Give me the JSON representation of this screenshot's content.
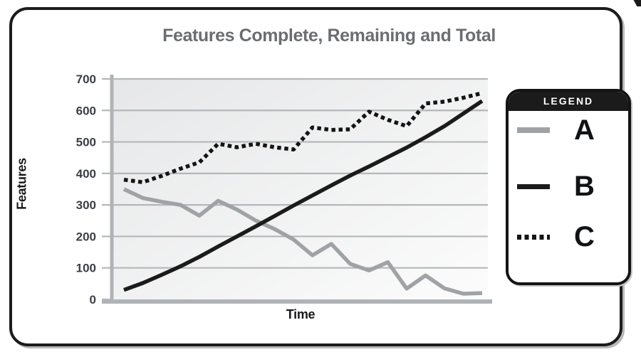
{
  "chart": {
    "title": "Features Complete, Remaining and Total",
    "xlabel": "Time",
    "ylabel": "Features"
  },
  "legend": {
    "header": "LEGEND",
    "items": [
      {
        "label": "A",
        "style": "solid-gray"
      },
      {
        "label": "B",
        "style": "solid-black"
      },
      {
        "label": "C",
        "style": "dashed-black"
      }
    ]
  },
  "chart_data": {
    "type": "line",
    "title": "Features Complete, Remaining and Total",
    "xlabel": "Time",
    "ylabel": "Features",
    "ylim": [
      0,
      700
    ],
    "yticks": [
      0,
      100,
      200,
      300,
      400,
      500,
      600,
      700
    ],
    "x_axis": {
      "label": "Time",
      "tick_labels_shown": false,
      "n_points": 20
    },
    "grid": "horizontal",
    "legend_position": "right-outside",
    "series": [
      {
        "name": "A",
        "style": "solid",
        "color": "#a0a3a5",
        "values": [
          350,
          322,
          310,
          300,
          266,
          313,
          285,
          250,
          223,
          190,
          140,
          176,
          113,
          92,
          118,
          34,
          76,
          35,
          18,
          20
        ]
      },
      {
        "name": "B",
        "style": "solid",
        "color": "#1b1b1b",
        "values": [
          30,
          52,
          78,
          105,
          135,
          168,
          200,
          232,
          265,
          298,
          330,
          362,
          393,
          422,
          452,
          482,
          515,
          550,
          590,
          630
        ]
      },
      {
        "name": "C",
        "style": "dashed",
        "color": "#141414",
        "values": [
          380,
          372,
          392,
          415,
          435,
          494,
          483,
          494,
          483,
          476,
          546,
          538,
          540,
          596,
          570,
          550,
          622,
          628,
          640,
          655
        ]
      }
    ]
  },
  "colors": {
    "title_gray": "#6b6e71",
    "axis_gray": "#b0b3b5",
    "gridline_gray": "#b4b7b9",
    "tick_label": "#3a3f46",
    "plot_bg_dark": "#e6e7e8",
    "plot_bg_light": "#fcfcfc",
    "series_a_gray": "#a0a3a5",
    "line_black": "#1b1b1b",
    "legend_header_bg": "#1b1b1b",
    "legend_header_text": "#ffffff"
  }
}
